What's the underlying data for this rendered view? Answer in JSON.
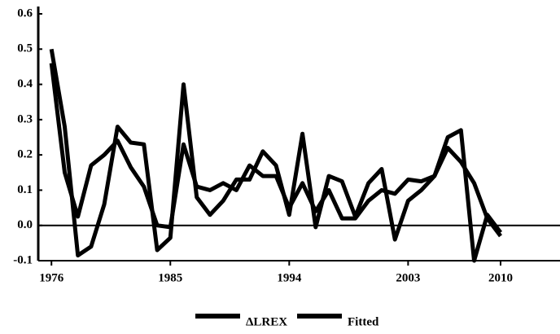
{
  "chart_data": {
    "type": "line",
    "x": [
      1976,
      1977,
      1978,
      1979,
      1980,
      1981,
      1982,
      1983,
      1984,
      1985,
      1986,
      1987,
      1988,
      1989,
      1990,
      1991,
      1992,
      1993,
      1994,
      1995,
      1996,
      1997,
      1998,
      1999,
      2000,
      2001,
      2002,
      2003,
      2004,
      2005,
      2006,
      2007,
      2008,
      2009,
      2010
    ],
    "series": [
      {
        "name": "ΔLREX",
        "color": "#000000",
        "values": [
          0.5,
          0.28,
          -0.085,
          -0.06,
          0.06,
          0.28,
          0.235,
          0.23,
          -0.07,
          -0.035,
          0.4,
          0.08,
          0.03,
          0.07,
          0.13,
          0.13,
          0.21,
          0.17,
          0.03,
          0.26,
          -0.005,
          0.14,
          0.125,
          0.025,
          0.12,
          0.16,
          -0.04,
          0.07,
          0.1,
          0.14,
          0.25,
          0.27,
          -0.1,
          0.03,
          -0.02
        ]
      },
      {
        "name": "Fitted",
        "color": "#000000",
        "values": [
          0.46,
          0.15,
          0.025,
          0.17,
          0.2,
          0.24,
          0.165,
          0.11,
          0.0,
          -0.005,
          0.23,
          0.11,
          0.1,
          0.12,
          0.1,
          0.17,
          0.14,
          0.14,
          0.05,
          0.12,
          0.04,
          0.1,
          0.02,
          0.02,
          0.07,
          0.1,
          0.09,
          0.13,
          0.125,
          0.14,
          0.22,
          0.18,
          0.12,
          0.02,
          -0.03
        ]
      }
    ],
    "xlim": [
      1975,
      2014.5
    ],
    "xticks": [
      1976,
      1985,
      1994,
      2003,
      2010
    ],
    "ylim": [
      -0.1,
      0.6
    ],
    "yticks": [
      0.6,
      0.5,
      0.4,
      0.3,
      0.2,
      0.1,
      {
        "value": 0,
        "label": "0.0"
      },
      -0.1
    ],
    "legend": "bottom"
  }
}
